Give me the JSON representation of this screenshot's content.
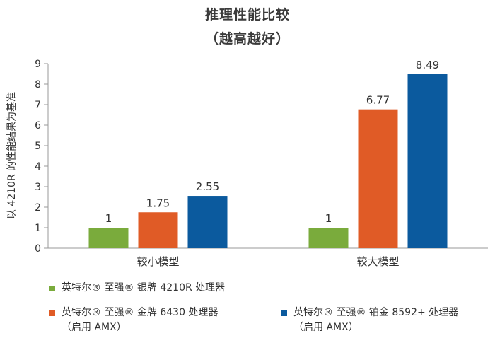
{
  "chart_data": {
    "type": "bar",
    "title": "推理性能比较",
    "subtitle": "（越高越好）",
    "ylabel": "以 4210R 的性能结果为基准",
    "xlabel": "",
    "ylim": [
      0,
      9
    ],
    "yticks": [
      "0",
      "1",
      "2",
      "3",
      "4",
      "5",
      "6",
      "7",
      "8",
      "9"
    ],
    "grid": false,
    "legend_position": "bottom",
    "categories": [
      "较小模型",
      "较大模型"
    ],
    "series": [
      {
        "name": "英特尔® 至强® 银牌 4210R 处理器",
        "name_sub": "",
        "color": "#7aab3c",
        "values": [
          1,
          1
        ],
        "labels": [
          "1",
          "1"
        ]
      },
      {
        "name": "英特尔® 至强® 金牌 6430 处理器",
        "name_sub": "（启用 AMX）",
        "color": "#e05b26",
        "values": [
          1.75,
          6.77
        ],
        "labels": [
          "1.75",
          "6.77"
        ]
      },
      {
        "name": "英特尔® 至强® 铂金 8592+ 处理器",
        "name_sub": "（启用 AMX）",
        "color": "#0b5a9e",
        "values": [
          2.55,
          8.49
        ],
        "labels": [
          "2.55",
          "8.49"
        ]
      }
    ]
  }
}
